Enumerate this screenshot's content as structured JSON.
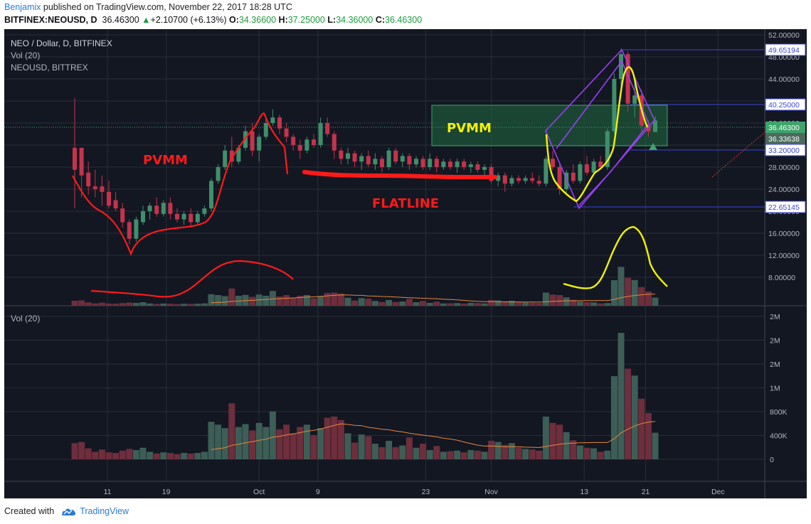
{
  "header": {
    "user": "Benjamix",
    "published_text": " published on TradingView.com, November 22, 2017 18:28 UTC",
    "symbol": "BITFINEX:NEOUSD, D",
    "last": "36.46300",
    "change": "+2.10700 (+6.13%)",
    "o_label": "O:",
    "o": "34.36600",
    "h_label": "H:",
    "h": "37.25000",
    "l_label": "L:",
    "l": "34.36000",
    "c_label": "C:",
    "c": "36.46300"
  },
  "legend": {
    "line1": "NEO / Dollar, D, BITFINEX",
    "line2": "Vol (20)",
    "line3": "NEOUSD, BITTREX",
    "vol_pane": "Vol (20)"
  },
  "footer": {
    "created_with": "Created with",
    "brand": "TradingView"
  },
  "colors": {
    "bg": "#131722",
    "grid": "#2a2e39",
    "up": "#3f8f6c",
    "down": "#c5334c",
    "vol_up": "#3d5e56",
    "vol_down": "#6e2e3c",
    "ma": "#e8873c",
    "text": "#b2b5be",
    "drawing_red": "#ff1a1a",
    "drawing_yellow": "#f2f200",
    "drawing_purple": "#9b3ff3",
    "box_fill": "#1e5a3a",
    "hline": "#3b45d6"
  },
  "annotations": {
    "pvmm_left": "PVMM",
    "pvmm_right": "PVMM",
    "flatline": "FLATLINE"
  },
  "chart_data": [
    {
      "type": "candlestick",
      "title": "NEO / Dollar, D, BITFINEX",
      "ylim": [
        4,
        52
      ],
      "y_ticks": [
        "52.00000",
        "48.00000",
        "44.00000",
        "40.00000",
        "36.00000",
        "32.00000",
        "28.00000",
        "24.00000",
        "20.00000",
        "16.00000",
        "12.00000",
        "8.00000"
      ],
      "x_tick_labels": [
        "11",
        "19",
        "Oct",
        "9",
        "23",
        "Nov",
        "13",
        "21",
        "Dec"
      ],
      "price_labels": [
        {
          "value": 49.65194,
          "text": "49.65194",
          "kind": "level"
        },
        {
          "value": 40.25,
          "text": "40.25000",
          "kind": "level"
        },
        {
          "value": 36.463,
          "text": "36.46300",
          "kind": "last"
        },
        {
          "value": 36.33638,
          "text": "36.33638",
          "kind": "secondary"
        },
        {
          "value": 33.2,
          "text": "33.20000",
          "kind": "level"
        },
        {
          "value": 22.65145,
          "text": "22.65145",
          "kind": "level"
        }
      ],
      "candles": [
        {
          "o": 31.5,
          "h": 40.5,
          "l": 20.5,
          "c": 27.5
        },
        {
          "o": 31.5,
          "h": 31.5,
          "l": 22.5,
          "c": 26.5
        },
        {
          "o": 27.0,
          "h": 29.0,
          "l": 23.0,
          "c": 24.5
        },
        {
          "o": 24.5,
          "h": 27.5,
          "l": 22.5,
          "c": 24.0
        },
        {
          "o": 24.5,
          "h": 26.5,
          "l": 21.0,
          "c": 23.5
        },
        {
          "o": 23.5,
          "h": 25.5,
          "l": 20.5,
          "c": 21.0
        },
        {
          "o": 22.0,
          "h": 23.5,
          "l": 20.0,
          "c": 20.5
        },
        {
          "o": 20.5,
          "h": 21.5,
          "l": 17.0,
          "c": 18.0
        },
        {
          "o": 18.0,
          "h": 18.5,
          "l": 14.0,
          "c": 15.0
        },
        {
          "o": 15.0,
          "h": 19.0,
          "l": 14.5,
          "c": 18.5
        },
        {
          "o": 18.0,
          "h": 21.0,
          "l": 17.5,
          "c": 20.0
        },
        {
          "o": 20.0,
          "h": 21.5,
          "l": 18.5,
          "c": 21.0
        },
        {
          "o": 21.0,
          "h": 22.5,
          "l": 19.0,
          "c": 19.5
        },
        {
          "o": 19.5,
          "h": 22.0,
          "l": 19.0,
          "c": 21.5
        },
        {
          "o": 21.5,
          "h": 22.5,
          "l": 18.5,
          "c": 19.5
        },
        {
          "o": 19.5,
          "h": 20.5,
          "l": 18.0,
          "c": 18.5
        },
        {
          "o": 18.5,
          "h": 20.0,
          "l": 17.5,
          "c": 19.5
        },
        {
          "o": 19.5,
          "h": 20.5,
          "l": 17.0,
          "c": 18.0
        },
        {
          "o": 18.0,
          "h": 20.0,
          "l": 17.5,
          "c": 19.5
        },
        {
          "o": 19.5,
          "h": 21.0,
          "l": 19.0,
          "c": 20.5
        },
        {
          "o": 20.5,
          "h": 26.0,
          "l": 20.0,
          "c": 25.5
        },
        {
          "o": 25.5,
          "h": 28.5,
          "l": 25.0,
          "c": 28.0
        },
        {
          "o": 28.0,
          "h": 32.0,
          "l": 27.5,
          "c": 31.0
        },
        {
          "o": 31.0,
          "h": 33.5,
          "l": 28.0,
          "c": 29.0
        },
        {
          "o": 29.0,
          "h": 32.0,
          "l": 28.5,
          "c": 31.5
        },
        {
          "o": 31.5,
          "h": 35.5,
          "l": 31.0,
          "c": 34.5
        },
        {
          "o": 34.5,
          "h": 36.0,
          "l": 30.0,
          "c": 31.0
        },
        {
          "o": 31.0,
          "h": 34.0,
          "l": 29.0,
          "c": 33.5
        },
        {
          "o": 33.5,
          "h": 37.0,
          "l": 33.0,
          "c": 36.0
        },
        {
          "o": 36.0,
          "h": 38.5,
          "l": 35.5,
          "c": 37.0
        },
        {
          "o": 37.0,
          "h": 37.5,
          "l": 34.0,
          "c": 35.0
        },
        {
          "o": 35.0,
          "h": 36.0,
          "l": 32.5,
          "c": 33.5
        },
        {
          "o": 33.5,
          "h": 34.0,
          "l": 31.0,
          "c": 32.0
        },
        {
          "o": 32.0,
          "h": 33.0,
          "l": 29.5,
          "c": 31.0
        },
        {
          "o": 31.0,
          "h": 33.5,
          "l": 30.5,
          "c": 33.0
        },
        {
          "o": 33.0,
          "h": 34.0,
          "l": 31.5,
          "c": 32.0
        },
        {
          "o": 32.0,
          "h": 37.0,
          "l": 31.5,
          "c": 36.0
        },
        {
          "o": 36.0,
          "h": 37.0,
          "l": 33.5,
          "c": 34.0
        },
        {
          "o": 34.0,
          "h": 34.5,
          "l": 29.5,
          "c": 31.0
        },
        {
          "o": 31.0,
          "h": 31.5,
          "l": 28.5,
          "c": 29.5
        },
        {
          "o": 29.5,
          "h": 31.5,
          "l": 28.5,
          "c": 30.5
        },
        {
          "o": 30.5,
          "h": 31.0,
          "l": 28.0,
          "c": 29.0
        },
        {
          "o": 29.0,
          "h": 30.5,
          "l": 27.5,
          "c": 30.0
        },
        {
          "o": 30.0,
          "h": 31.0,
          "l": 28.0,
          "c": 28.5
        },
        {
          "o": 28.5,
          "h": 30.5,
          "l": 27.5,
          "c": 29.5
        },
        {
          "o": 29.5,
          "h": 30.0,
          "l": 27.0,
          "c": 28.0
        },
        {
          "o": 28.0,
          "h": 31.5,
          "l": 27.5,
          "c": 31.0
        },
        {
          "o": 31.0,
          "h": 31.5,
          "l": 28.5,
          "c": 29.0
        },
        {
          "o": 29.0,
          "h": 30.5,
          "l": 28.0,
          "c": 30.0
        },
        {
          "o": 30.0,
          "h": 30.5,
          "l": 27.5,
          "c": 28.5
        },
        {
          "o": 28.5,
          "h": 30.0,
          "l": 28.0,
          "c": 29.5
        },
        {
          "o": 29.5,
          "h": 30.0,
          "l": 27.5,
          "c": 28.0
        },
        {
          "o": 28.0,
          "h": 30.5,
          "l": 27.5,
          "c": 29.5
        },
        {
          "o": 29.5,
          "h": 30.0,
          "l": 27.0,
          "c": 28.0
        },
        {
          "o": 28.0,
          "h": 29.5,
          "l": 27.5,
          "c": 29.0
        },
        {
          "o": 29.0,
          "h": 29.5,
          "l": 27.5,
          "c": 28.0
        },
        {
          "o": 28.0,
          "h": 29.5,
          "l": 27.0,
          "c": 29.0
        },
        {
          "o": 29.0,
          "h": 29.5,
          "l": 27.5,
          "c": 28.0
        },
        {
          "o": 28.0,
          "h": 29.0,
          "l": 27.0,
          "c": 28.5
        },
        {
          "o": 28.5,
          "h": 29.0,
          "l": 27.0,
          "c": 27.5
        },
        {
          "o": 27.5,
          "h": 28.5,
          "l": 26.5,
          "c": 28.0
        },
        {
          "o": 28.0,
          "h": 28.5,
          "l": 25.0,
          "c": 25.5
        },
        {
          "o": 25.5,
          "h": 27.0,
          "l": 24.5,
          "c": 26.5
        },
        {
          "o": 26.5,
          "h": 27.0,
          "l": 23.5,
          "c": 25.0
        },
        {
          "o": 25.0,
          "h": 26.5,
          "l": 24.5,
          "c": 26.0
        },
        {
          "o": 26.0,
          "h": 26.5,
          "l": 25.0,
          "c": 25.5
        },
        {
          "o": 25.5,
          "h": 26.5,
          "l": 25.0,
          "c": 26.0
        },
        {
          "o": 26.0,
          "h": 27.0,
          "l": 25.0,
          "c": 25.5
        },
        {
          "o": 25.5,
          "h": 26.5,
          "l": 24.5,
          "c": 25.0
        },
        {
          "o": 25.0,
          "h": 30.0,
          "l": 24.5,
          "c": 29.5
        },
        {
          "o": 29.5,
          "h": 31.0,
          "l": 27.5,
          "c": 28.0
        },
        {
          "o": 28.0,
          "h": 28.5,
          "l": 23.0,
          "c": 24.0
        },
        {
          "o": 24.0,
          "h": 27.5,
          "l": 23.0,
          "c": 27.0
        },
        {
          "o": 27.0,
          "h": 28.5,
          "l": 25.0,
          "c": 25.5
        },
        {
          "o": 25.5,
          "h": 29.0,
          "l": 25.0,
          "c": 28.5
        },
        {
          "o": 28.5,
          "h": 30.0,
          "l": 26.5,
          "c": 27.0
        },
        {
          "o": 27.0,
          "h": 29.5,
          "l": 26.5,
          "c": 29.0
        },
        {
          "o": 29.0,
          "h": 30.0,
          "l": 27.5,
          "c": 28.0
        },
        {
          "o": 28.0,
          "h": 35.0,
          "l": 27.5,
          "c": 34.5
        },
        {
          "o": 34.5,
          "h": 45.0,
          "l": 34.0,
          "c": 44.0
        },
        {
          "o": 44.0,
          "h": 49.5,
          "l": 42.0,
          "c": 48.5
        },
        {
          "o": 48.5,
          "h": 49.0,
          "l": 38.0,
          "c": 39.5
        },
        {
          "o": 39.5,
          "h": 44.0,
          "l": 37.0,
          "c": 41.0
        },
        {
          "o": 41.0,
          "h": 42.0,
          "l": 34.0,
          "c": 35.5
        },
        {
          "o": 35.5,
          "h": 36.5,
          "l": 33.5,
          "c": 34.5
        },
        {
          "o": 34.366,
          "h": 37.25,
          "l": 34.36,
          "c": 36.463
        }
      ]
    },
    {
      "type": "bar",
      "title": "Vol (20)",
      "ylabel": "",
      "ylim": [
        0,
        2500000
      ],
      "y_ticks": [
        "2M",
        "2M",
        "2M",
        "1M",
        "800K",
        "400K",
        "0"
      ],
      "ma_period": 20,
      "values": [
        280000,
        300000,
        190000,
        130000,
        170000,
        120000,
        110000,
        150000,
        180000,
        160000,
        200000,
        130000,
        100000,
        120000,
        110000,
        90000,
        110000,
        100000,
        110000,
        130000,
        650000,
        600000,
        540000,
        970000,
        560000,
        610000,
        500000,
        630000,
        560000,
        830000,
        520000,
        600000,
        450000,
        560000,
        600000,
        420000,
        540000,
        720000,
        740000,
        680000,
        450000,
        290000,
        430000,
        400000,
        270000,
        210000,
        320000,
        210000,
        240000,
        380000,
        200000,
        270000,
        160000,
        230000,
        130000,
        140000,
        150000,
        120000,
        160000,
        150000,
        130000,
        320000,
        300000,
        250000,
        280000,
        200000,
        180000,
        170000,
        150000,
        740000,
        630000,
        600000,
        470000,
        330000,
        240000,
        200000,
        190000,
        130000,
        150000,
        1440000,
        2190000,
        1570000,
        1450000,
        1050000,
        800000,
        460000
      ]
    }
  ]
}
